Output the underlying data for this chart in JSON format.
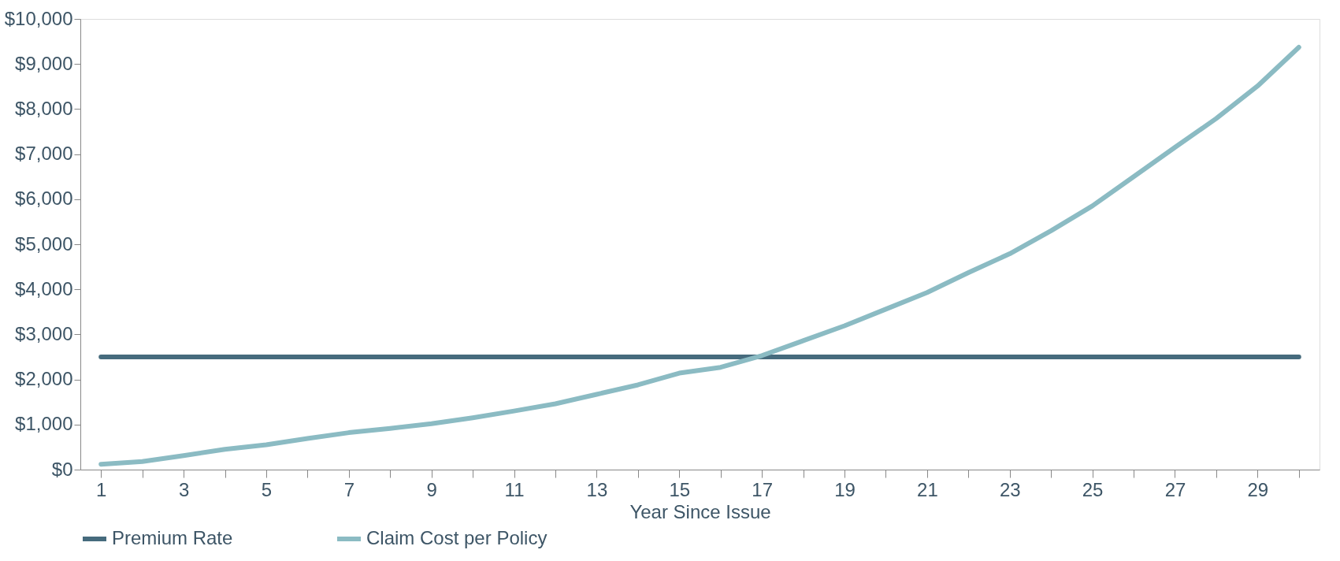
{
  "chart_data": {
    "type": "line",
    "xlabel": "Year Since Issue",
    "x": [
      1,
      2,
      3,
      4,
      5,
      6,
      7,
      8,
      9,
      10,
      11,
      12,
      13,
      14,
      15,
      16,
      17,
      18,
      19,
      20,
      21,
      22,
      23,
      24,
      25,
      26,
      27,
      28,
      29,
      30
    ],
    "series": [
      {
        "name": "Premium Rate",
        "color": "#466b7d",
        "values": [
          2500,
          2500,
          2500,
          2500,
          2500,
          2500,
          2500,
          2500,
          2500,
          2500,
          2500,
          2500,
          2500,
          2500,
          2500,
          2500,
          2500,
          2500,
          2500,
          2500,
          2500,
          2500,
          2500,
          2500,
          2500,
          2500,
          2500,
          2500,
          2500,
          2500
        ]
      },
      {
        "name": "Claim Cost per Policy",
        "color": "#8bbbc3",
        "values": [
          120,
          180,
          310,
          450,
          550,
          690,
          820,
          915,
          1020,
          1150,
          1300,
          1460,
          1670,
          1880,
          2140,
          2270,
          2530,
          2860,
          3190,
          3560,
          3930,
          4370,
          4790,
          5300,
          5850,
          6500,
          7150,
          7790,
          8510,
          9370
        ]
      }
    ],
    "xlim": [
      0.5,
      30.5
    ],
    "xticks": [
      1,
      {
        "value": 2,
        "label": null
      },
      3,
      {
        "value": 4,
        "label": null
      },
      5,
      {
        "value": 6,
        "label": null
      },
      7,
      {
        "value": 8,
        "label": null
      },
      9,
      {
        "value": 10,
        "label": null
      },
      11,
      {
        "value": 12,
        "label": null
      },
      13,
      {
        "value": 14,
        "label": null
      },
      15,
      {
        "value": 16,
        "label": null
      },
      17,
      {
        "value": 18,
        "label": null
      },
      19,
      {
        "value": 20,
        "label": null
      },
      21,
      {
        "value": 22,
        "label": null
      },
      23,
      {
        "value": 24,
        "label": null
      },
      25,
      {
        "value": 26,
        "label": null
      },
      27,
      {
        "value": 28,
        "label": null
      },
      29,
      {
        "value": 30,
        "label": null
      }
    ],
    "ylim": [
      0,
      10000
    ],
    "yticks": [
      {
        "value": 0,
        "label": "$0"
      },
      {
        "value": 1000,
        "label": "$1,000"
      },
      {
        "value": 2000,
        "label": "$2,000"
      },
      {
        "value": 3000,
        "label": "$3,000"
      },
      {
        "value": 4000,
        "label": "$4,000"
      },
      {
        "value": 5000,
        "label": "$5,000"
      },
      {
        "value": 6000,
        "label": "$6,000"
      },
      {
        "value": 7000,
        "label": "$7,000"
      },
      {
        "value": 8000,
        "label": "$8,000"
      },
      {
        "value": 9000,
        "label": "$9,000"
      },
      {
        "value": 10000,
        "label": "$10,000"
      }
    ],
    "grid": false,
    "legend": "bottom",
    "marker": "none",
    "line_style": "solid"
  }
}
